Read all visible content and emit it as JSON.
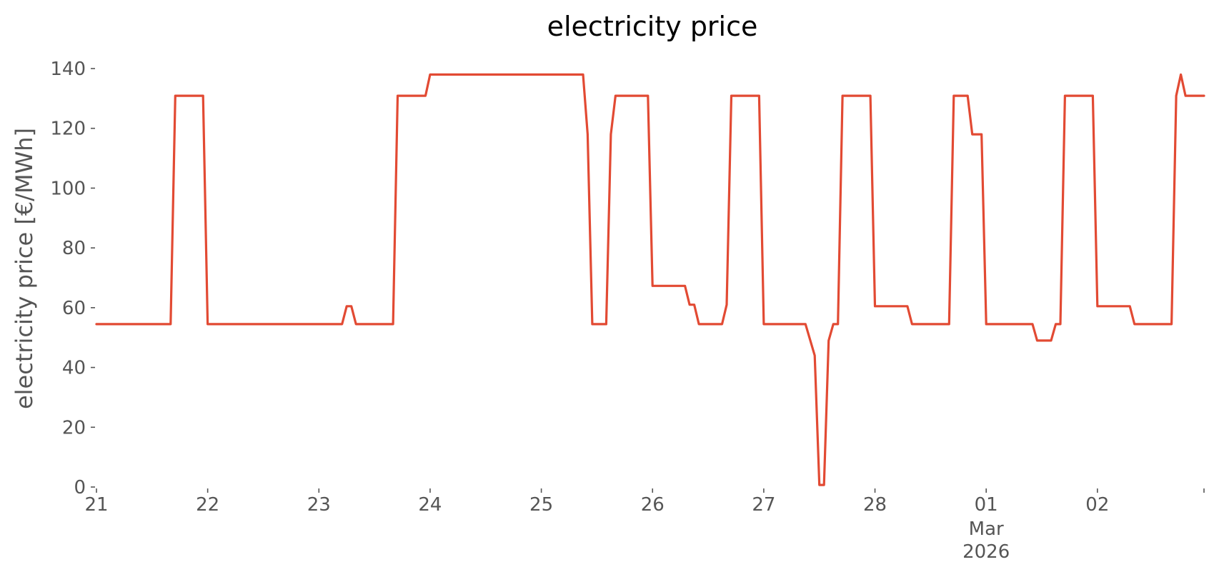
{
  "chart_data": {
    "type": "line",
    "title": "electricity price",
    "xlabel": "",
    "ylabel": "electricity price [€/MWh]",
    "ylim": [
      0,
      140
    ],
    "xlim": [
      "2026-02-21 00:00",
      "2026-03-02 23:00"
    ],
    "grid": false,
    "y_ticks": [
      "0",
      "20",
      "40",
      "60",
      "80",
      "100",
      "120",
      "140"
    ],
    "x_ticks": [
      {
        "label": "21",
        "sub": []
      },
      {
        "label": "22",
        "sub": []
      },
      {
        "label": "23",
        "sub": []
      },
      {
        "label": "24",
        "sub": []
      },
      {
        "label": "25",
        "sub": []
      },
      {
        "label": "26",
        "sub": []
      },
      {
        "label": "27",
        "sub": []
      },
      {
        "label": "28",
        "sub": []
      },
      {
        "label": "01",
        "sub": [
          "Mar",
          "2026"
        ]
      },
      {
        "label": "02",
        "sub": []
      }
    ],
    "series": [
      {
        "color": "#e24a33",
        "x": [
          "2026-02-21 00:00",
          "2026-02-21 16:00",
          "2026-02-21 17:00",
          "2026-02-21 23:00",
          "2026-02-22 00:00",
          "2026-02-23 05:00",
          "2026-02-23 06:00",
          "2026-02-23 07:00",
          "2026-02-23 08:00",
          "2026-02-23 16:00",
          "2026-02-23 17:00",
          "2026-02-23 23:00",
          "2026-02-24 00:00",
          "2026-02-25 09:00",
          "2026-02-25 10:00",
          "2026-02-25 11:00",
          "2026-02-25 14:00",
          "2026-02-25 15:00",
          "2026-02-25 16:00",
          "2026-02-25 23:00",
          "2026-02-26 00:00",
          "2026-02-26 07:00",
          "2026-02-26 08:00",
          "2026-02-26 09:00",
          "2026-02-26 10:00",
          "2026-02-26 15:00",
          "2026-02-26 16:00",
          "2026-02-26 17:00",
          "2026-02-26 23:00",
          "2026-02-27 00:00",
          "2026-02-27 09:00",
          "2026-02-27 11:00",
          "2026-02-27 12:00",
          "2026-02-27 13:00",
          "2026-02-27 14:00",
          "2026-02-27 15:00",
          "2026-02-27 16:00",
          "2026-02-27 17:00",
          "2026-02-27 23:00",
          "2026-02-28 00:00",
          "2026-02-28 07:00",
          "2026-02-28 08:00",
          "2026-02-28 16:00",
          "2026-02-28 17:00",
          "2026-02-28 20:00",
          "2026-02-28 21:00",
          "2026-02-28 23:00",
          "2026-03-01 00:00",
          "2026-03-01 10:00",
          "2026-03-01 11:00",
          "2026-03-01 14:00",
          "2026-03-01 15:00",
          "2026-03-01 16:00",
          "2026-03-01 17:00",
          "2026-03-01 23:00",
          "2026-03-02 00:00",
          "2026-03-02 07:00",
          "2026-03-02 08:00",
          "2026-03-02 16:00",
          "2026-03-02 17:00",
          "2026-03-02 18:00",
          "2026-03-02 19:00",
          "2026-03-02 23:00"
        ],
        "y": [
          54.5,
          54.5,
          130.9,
          130.9,
          54.5,
          54.5,
          60.5,
          60.5,
          54.5,
          54.5,
          130.9,
          130.9,
          138.0,
          138.0,
          118.0,
          54.5,
          54.5,
          118.0,
          130.9,
          130.9,
          67.3,
          67.3,
          61.0,
          61.0,
          54.5,
          54.5,
          61.0,
          130.9,
          130.9,
          54.5,
          54.5,
          44.0,
          0.7,
          0.7,
          49.0,
          54.5,
          54.5,
          130.9,
          130.9,
          60.5,
          60.5,
          54.5,
          54.5,
          130.9,
          130.9,
          118.0,
          118.0,
          54.5,
          54.5,
          49.0,
          49.0,
          54.5,
          54.5,
          130.9,
          130.9,
          60.5,
          60.5,
          54.5,
          54.5,
          130.9,
          138.0,
          130.9,
          130.9
        ]
      }
    ]
  }
}
